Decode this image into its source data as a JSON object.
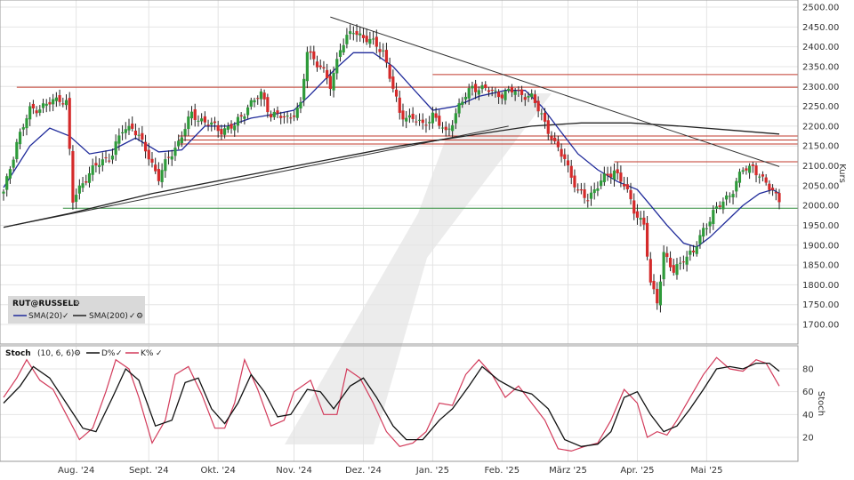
{
  "chart_data": {
    "type": "candlestick",
    "title": "RUT@RUSSELL",
    "ticker": "RUT@RUSSELL",
    "price_axis_label": "Kurs",
    "price_ylim": [
      1650,
      2500
    ],
    "price_ticks": [
      "2500.00",
      "2450.00",
      "2400.00",
      "2350.00",
      "2300.00",
      "2250.00",
      "2200.00",
      "2150.00",
      "2100.00",
      "2050.00",
      "2000.00",
      "1950.00",
      "1900.00",
      "1850.00",
      "1800.00",
      "1750.00",
      "1700.00"
    ],
    "months": [
      {
        "label": "Aug. '24",
        "day": 22
      },
      {
        "label": "Sept. '24",
        "day": 44
      },
      {
        "label": "Okt. '24",
        "day": 65
      },
      {
        "label": "Nov. '24",
        "day": 88
      },
      {
        "label": "Dez. '24",
        "day": 109
      },
      {
        "label": "Jan. '25",
        "day": 130
      },
      {
        "label": "Feb. '25",
        "day": 151
      },
      {
        "label": "März '25",
        "day": 171
      },
      {
        "label": "Apr. '25",
        "day": 192
      },
      {
        "label": "Mai '25",
        "day": 213
      }
    ],
    "legend": [
      {
        "name": "SMA(20)",
        "color": "#1f2a9a"
      },
      {
        "name": "SMA(200)",
        "color": "#222222"
      }
    ],
    "key_points": [
      {
        "day": 0,
        "value": 2030
      },
      {
        "day": 4,
        "value": 2160
      },
      {
        "day": 8,
        "value": 2240
      },
      {
        "day": 12,
        "value": 2250
      },
      {
        "day": 17,
        "value": 2270
      },
      {
        "day": 19,
        "value": 2260
      },
      {
        "day": 21,
        "value": 2010
      },
      {
        "day": 24,
        "value": 2060
      },
      {
        "day": 28,
        "value": 2100
      },
      {
        "day": 33,
        "value": 2130
      },
      {
        "day": 36,
        "value": 2190
      },
      {
        "day": 39,
        "value": 2200
      },
      {
        "day": 43,
        "value": 2140
      },
      {
        "day": 47,
        "value": 2070
      },
      {
        "day": 50,
        "value": 2120
      },
      {
        "day": 53,
        "value": 2160
      },
      {
        "day": 57,
        "value": 2230
      },
      {
        "day": 61,
        "value": 2210
      },
      {
        "day": 66,
        "value": 2190
      },
      {
        "day": 70,
        "value": 2200
      },
      {
        "day": 74,
        "value": 2250
      },
      {
        "day": 78,
        "value": 2280
      },
      {
        "day": 81,
        "value": 2230
      },
      {
        "day": 86,
        "value": 2220
      },
      {
        "day": 90,
        "value": 2250
      },
      {
        "day": 92,
        "value": 2390
      },
      {
        "day": 96,
        "value": 2350
      },
      {
        "day": 99,
        "value": 2300
      },
      {
        "day": 102,
        "value": 2400
      },
      {
        "day": 106,
        "value": 2440
      },
      {
        "day": 110,
        "value": 2420
      },
      {
        "day": 115,
        "value": 2390
      },
      {
        "day": 120,
        "value": 2230
      },
      {
        "day": 124,
        "value": 2220
      },
      {
        "day": 127,
        "value": 2200
      },
      {
        "day": 130,
        "value": 2230
      },
      {
        "day": 134,
        "value": 2180
      },
      {
        "day": 138,
        "value": 2250
      },
      {
        "day": 142,
        "value": 2300
      },
      {
        "day": 147,
        "value": 2290
      },
      {
        "day": 151,
        "value": 2280
      },
      {
        "day": 155,
        "value": 2290
      },
      {
        "day": 160,
        "value": 2270
      },
      {
        "day": 163,
        "value": 2230
      },
      {
        "day": 167,
        "value": 2150
      },
      {
        "day": 170,
        "value": 2120
      },
      {
        "day": 174,
        "value": 2030
      },
      {
        "day": 177,
        "value": 2020
      },
      {
        "day": 181,
        "value": 2060
      },
      {
        "day": 185,
        "value": 2090
      },
      {
        "day": 188,
        "value": 2050
      },
      {
        "day": 191,
        "value": 1990
      },
      {
        "day": 194,
        "value": 1950
      },
      {
        "day": 196,
        "value": 1800
      },
      {
        "day": 198,
        "value": 1760
      },
      {
        "day": 200,
        "value": 1880
      },
      {
        "day": 203,
        "value": 1830
      },
      {
        "day": 206,
        "value": 1870
      },
      {
        "day": 209,
        "value": 1880
      },
      {
        "day": 212,
        "value": 1940
      },
      {
        "day": 215,
        "value": 1980
      },
      {
        "day": 218,
        "value": 2010
      },
      {
        "day": 221,
        "value": 2040
      },
      {
        "day": 224,
        "value": 2090
      },
      {
        "day": 227,
        "value": 2100
      },
      {
        "day": 230,
        "value": 2060
      },
      {
        "day": 233,
        "value": 2040
      },
      {
        "day": 235,
        "value": 2015
      }
    ],
    "sma20_points": [
      {
        "day": 0,
        "value": 2045
      },
      {
        "day": 8,
        "value": 2150
      },
      {
        "day": 14,
        "value": 2195
      },
      {
        "day": 20,
        "value": 2175
      },
      {
        "day": 26,
        "value": 2130
      },
      {
        "day": 33,
        "value": 2140
      },
      {
        "day": 40,
        "value": 2170
      },
      {
        "day": 47,
        "value": 2135
      },
      {
        "day": 54,
        "value": 2140
      },
      {
        "day": 61,
        "value": 2200
      },
      {
        "day": 68,
        "value": 2200
      },
      {
        "day": 75,
        "value": 2220
      },
      {
        "day": 82,
        "value": 2230
      },
      {
        "day": 88,
        "value": 2240
      },
      {
        "day": 93,
        "value": 2280
      },
      {
        "day": 100,
        "value": 2340
      },
      {
        "day": 106,
        "value": 2385
      },
      {
        "day": 112,
        "value": 2385
      },
      {
        "day": 118,
        "value": 2350
      },
      {
        "day": 124,
        "value": 2295
      },
      {
        "day": 130,
        "value": 2240
      },
      {
        "day": 137,
        "value": 2250
      },
      {
        "day": 144,
        "value": 2275
      },
      {
        "day": 152,
        "value": 2290
      },
      {
        "day": 158,
        "value": 2290
      },
      {
        "day": 163,
        "value": 2250
      },
      {
        "day": 168,
        "value": 2195
      },
      {
        "day": 174,
        "value": 2130
      },
      {
        "day": 180,
        "value": 2090
      },
      {
        "day": 186,
        "value": 2060
      },
      {
        "day": 192,
        "value": 2040
      },
      {
        "day": 196,
        "value": 2000
      },
      {
        "day": 201,
        "value": 1950
      },
      {
        "day": 206,
        "value": 1905
      },
      {
        "day": 210,
        "value": 1895
      },
      {
        "day": 214,
        "value": 1920
      },
      {
        "day": 219,
        "value": 1960
      },
      {
        "day": 224,
        "value": 2000
      },
      {
        "day": 229,
        "value": 2030
      },
      {
        "day": 233,
        "value": 2040
      },
      {
        "day": 235,
        "value": 2030
      }
    ],
    "sma200_points": [
      {
        "day": 0,
        "value": 1945
      },
      {
        "day": 20,
        "value": 1980
      },
      {
        "day": 45,
        "value": 2030
      },
      {
        "day": 70,
        "value": 2070
      },
      {
        "day": 95,
        "value": 2110
      },
      {
        "day": 120,
        "value": 2150
      },
      {
        "day": 140,
        "value": 2175
      },
      {
        "day": 160,
        "value": 2200
      },
      {
        "day": 175,
        "value": 2208
      },
      {
        "day": 190,
        "value": 2208
      },
      {
        "day": 205,
        "value": 2200
      },
      {
        "day": 220,
        "value": 2190
      },
      {
        "day": 235,
        "value": 2180
      }
    ],
    "horizontal_lines": [
      {
        "value": 2330,
        "color": "#c0392b",
        "from_day": 130
      },
      {
        "value": 2298,
        "color": "#c0392b",
        "from_day": 4
      },
      {
        "value": 2175,
        "color": "#c0392b",
        "from_day": 53
      },
      {
        "value": 2165,
        "color": "#c0392b",
        "from_day": 53
      },
      {
        "value": 2155,
        "color": "#c0392b",
        "from_day": 53
      },
      {
        "value": 2110,
        "color": "#c0392b",
        "from_day": 185
      },
      {
        "value": 1993,
        "color": "#2e8b3a",
        "from_day": 18
      }
    ],
    "trend_lines": [
      {
        "from_day": 99,
        "from_value": 2475,
        "to_day": 235,
        "to_value": 2098
      },
      {
        "from_day": 0,
        "from_value": 1945,
        "to_day": 153,
        "to_value": 2200
      }
    ],
    "stoch": {
      "title": "Stoch",
      "params": "(10, 6, 6)",
      "axis_label": "Stoch",
      "ylim": [
        0,
        100
      ],
      "ticks": [
        "80",
        "60",
        "40",
        "20"
      ],
      "legend": [
        {
          "name": "D%",
          "color": "#111111"
        },
        {
          "name": "K%",
          "color": "#d23a5a"
        }
      ],
      "k_points": [
        {
          "day": 0,
          "value": 55
        },
        {
          "day": 4,
          "value": 72
        },
        {
          "day": 7,
          "value": 88
        },
        {
          "day": 11,
          "value": 70
        },
        {
          "day": 15,
          "value": 62
        },
        {
          "day": 19,
          "value": 40
        },
        {
          "day": 23,
          "value": 18
        },
        {
          "day": 27,
          "value": 28
        },
        {
          "day": 31,
          "value": 60
        },
        {
          "day": 34,
          "value": 88
        },
        {
          "day": 38,
          "value": 80
        },
        {
          "day": 41,
          "value": 55
        },
        {
          "day": 45,
          "value": 15
        },
        {
          "day": 49,
          "value": 35
        },
        {
          "day": 52,
          "value": 75
        },
        {
          "day": 56,
          "value": 82
        },
        {
          "day": 60,
          "value": 58
        },
        {
          "day": 64,
          "value": 28
        },
        {
          "day": 67,
          "value": 28
        },
        {
          "day": 70,
          "value": 50
        },
        {
          "day": 73,
          "value": 88
        },
        {
          "day": 77,
          "value": 62
        },
        {
          "day": 81,
          "value": 30
        },
        {
          "day": 85,
          "value": 35
        },
        {
          "day": 88,
          "value": 60
        },
        {
          "day": 93,
          "value": 70
        },
        {
          "day": 97,
          "value": 40
        },
        {
          "day": 101,
          "value": 40
        },
        {
          "day": 104,
          "value": 80
        },
        {
          "day": 108,
          "value": 72
        },
        {
          "day": 112,
          "value": 50
        },
        {
          "day": 116,
          "value": 25
        },
        {
          "day": 120,
          "value": 12
        },
        {
          "day": 124,
          "value": 15
        },
        {
          "day": 128,
          "value": 25
        },
        {
          "day": 132,
          "value": 50
        },
        {
          "day": 136,
          "value": 48
        },
        {
          "day": 140,
          "value": 75
        },
        {
          "day": 144,
          "value": 88
        },
        {
          "day": 148,
          "value": 75
        },
        {
          "day": 152,
          "value": 55
        },
        {
          "day": 156,
          "value": 65
        },
        {
          "day": 160,
          "value": 50
        },
        {
          "day": 164,
          "value": 35
        },
        {
          "day": 168,
          "value": 10
        },
        {
          "day": 172,
          "value": 8
        },
        {
          "day": 176,
          "value": 12
        },
        {
          "day": 180,
          "value": 15
        },
        {
          "day": 184,
          "value": 35
        },
        {
          "day": 188,
          "value": 62
        },
        {
          "day": 192,
          "value": 50
        },
        {
          "day": 195,
          "value": 20
        },
        {
          "day": 198,
          "value": 25
        },
        {
          "day": 201,
          "value": 22
        },
        {
          "day": 204,
          "value": 35
        },
        {
          "day": 208,
          "value": 55
        },
        {
          "day": 212,
          "value": 75
        },
        {
          "day": 216,
          "value": 90
        },
        {
          "day": 220,
          "value": 80
        },
        {
          "day": 224,
          "value": 78
        },
        {
          "day": 228,
          "value": 88
        },
        {
          "day": 231,
          "value": 85
        },
        {
          "day": 233,
          "value": 75
        },
        {
          "day": 235,
          "value": 65
        }
      ],
      "d_points": [
        {
          "day": 0,
          "value": 50
        },
        {
          "day": 5,
          "value": 65
        },
        {
          "day": 9,
          "value": 82
        },
        {
          "day": 14,
          "value": 72
        },
        {
          "day": 19,
          "value": 50
        },
        {
          "day": 24,
          "value": 28
        },
        {
          "day": 28,
          "value": 25
        },
        {
          "day": 33,
          "value": 55
        },
        {
          "day": 37,
          "value": 80
        },
        {
          "day": 41,
          "value": 70
        },
        {
          "day": 46,
          "value": 30
        },
        {
          "day": 51,
          "value": 35
        },
        {
          "day": 55,
          "value": 68
        },
        {
          "day": 59,
          "value": 72
        },
        {
          "day": 63,
          "value": 45
        },
        {
          "day": 67,
          "value": 32
        },
        {
          "day": 71,
          "value": 50
        },
        {
          "day": 75,
          "value": 75
        },
        {
          "day": 79,
          "value": 60
        },
        {
          "day": 83,
          "value": 38
        },
        {
          "day": 87,
          "value": 40
        },
        {
          "day": 92,
          "value": 62
        },
        {
          "day": 96,
          "value": 60
        },
        {
          "day": 100,
          "value": 45
        },
        {
          "day": 105,
          "value": 65
        },
        {
          "day": 109,
          "value": 72
        },
        {
          "day": 113,
          "value": 55
        },
        {
          "day": 118,
          "value": 30
        },
        {
          "day": 122,
          "value": 18
        },
        {
          "day": 127,
          "value": 18
        },
        {
          "day": 132,
          "value": 35
        },
        {
          "day": 136,
          "value": 45
        },
        {
          "day": 141,
          "value": 65
        },
        {
          "day": 145,
          "value": 82
        },
        {
          "day": 150,
          "value": 70
        },
        {
          "day": 155,
          "value": 62
        },
        {
          "day": 160,
          "value": 58
        },
        {
          "day": 165,
          "value": 45
        },
        {
          "day": 170,
          "value": 18
        },
        {
          "day": 175,
          "value": 12
        },
        {
          "day": 180,
          "value": 14
        },
        {
          "day": 184,
          "value": 25
        },
        {
          "day": 188,
          "value": 55
        },
        {
          "day": 192,
          "value": 60
        },
        {
          "day": 196,
          "value": 40
        },
        {
          "day": 200,
          "value": 25
        },
        {
          "day": 204,
          "value": 30
        },
        {
          "day": 208,
          "value": 45
        },
        {
          "day": 212,
          "value": 62
        },
        {
          "day": 216,
          "value": 80
        },
        {
          "day": 220,
          "value": 82
        },
        {
          "day": 224,
          "value": 80
        },
        {
          "day": 228,
          "value": 85
        },
        {
          "day": 232,
          "value": 85
        },
        {
          "day": 235,
          "value": 78
        }
      ]
    }
  }
}
